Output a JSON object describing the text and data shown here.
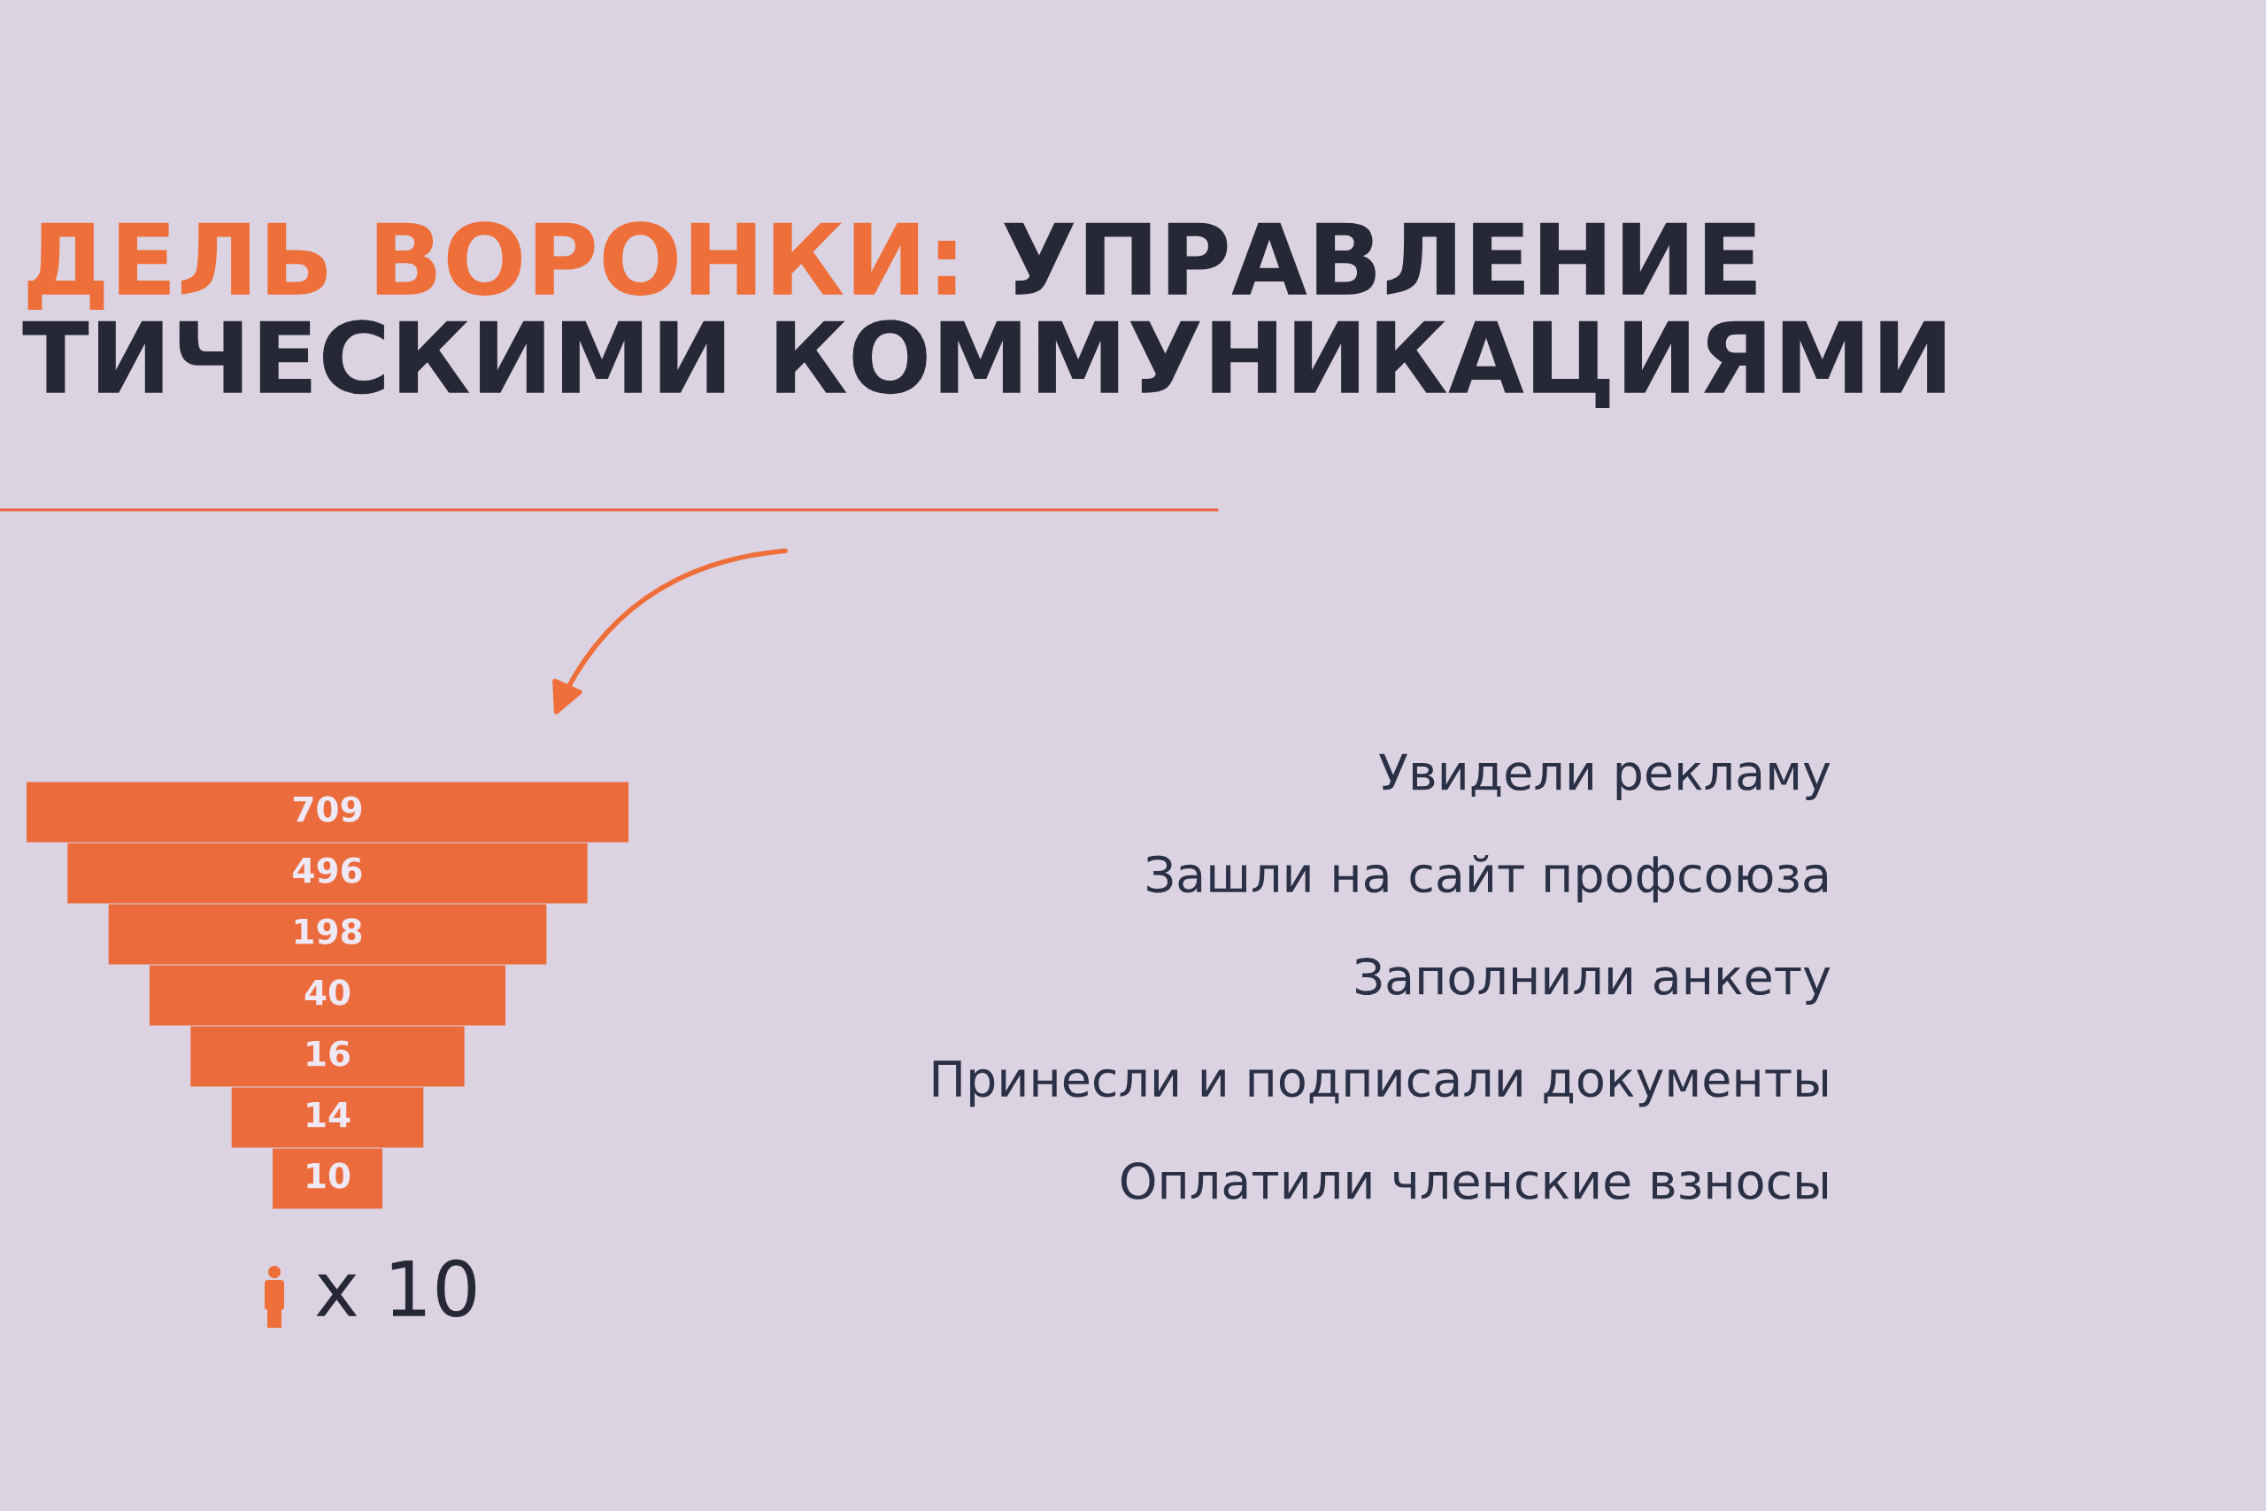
{
  "chart_data": {
    "type": "other",
    "title": "ДЕЛЬ ВОРОНКИ: УПРАВЛЕНИЕ\nТИЧЕСКИМИ КОММУНИКАЦИЯМИ",
    "values": [
      709,
      496,
      198,
      40,
      16,
      14,
      10
    ],
    "color": "#ec6b3c",
    "data_labels": true,
    "annotations": [
      "Увидели рекламу",
      "Зашли на сайт профсоюза",
      "Заполнили анкету",
      "Принесли и подписали документы",
      "Оплатили членские взносы",
      "x 10"
    ]
  }
}
